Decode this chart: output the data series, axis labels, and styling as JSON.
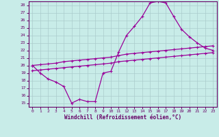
{
  "xlabel": "Windchill (Refroidissement éolien,°C)",
  "bg_color": "#c8ece8",
  "line_color": "#990099",
  "grid_color": "#aacccc",
  "xlim": [
    -0.5,
    23.5
  ],
  "ylim": [
    14.5,
    28.5
  ],
  "xticks": [
    0,
    1,
    2,
    3,
    4,
    5,
    6,
    7,
    8,
    9,
    10,
    11,
    12,
    13,
    14,
    15,
    16,
    17,
    18,
    19,
    20,
    21,
    22,
    23
  ],
  "yticks": [
    15,
    16,
    17,
    18,
    19,
    20,
    21,
    22,
    23,
    24,
    25,
    26,
    27,
    28
  ],
  "line1_x": [
    0,
    1,
    2,
    3,
    4,
    5,
    6,
    7,
    8,
    9,
    10,
    11,
    12,
    13,
    14,
    15,
    16,
    17,
    18,
    19,
    20,
    21,
    22,
    23
  ],
  "line1_y": [
    20.0,
    19.0,
    18.2,
    17.8,
    17.2,
    15.0,
    15.5,
    15.2,
    15.2,
    19.0,
    19.2,
    21.8,
    24.0,
    25.2,
    26.5,
    28.3,
    28.5,
    28.3,
    26.5,
    24.8,
    23.8,
    23.0,
    22.3,
    22.0
  ],
  "line2_x": [
    0,
    1,
    2,
    3,
    4,
    5,
    6,
    7,
    8,
    9,
    10,
    11,
    12,
    13,
    14,
    15,
    16,
    17,
    18,
    19,
    20,
    21,
    22,
    23
  ],
  "line2_y": [
    20.0,
    20.1,
    20.2,
    20.3,
    20.5,
    20.6,
    20.7,
    20.8,
    20.9,
    21.0,
    21.1,
    21.3,
    21.5,
    21.6,
    21.7,
    21.8,
    21.9,
    22.0,
    22.1,
    22.2,
    22.3,
    22.4,
    22.5,
    22.6
  ],
  "line3_x": [
    0,
    1,
    2,
    3,
    4,
    5,
    6,
    7,
    8,
    9,
    10,
    11,
    12,
    13,
    14,
    15,
    16,
    17,
    18,
    19,
    20,
    21,
    22,
    23
  ],
  "line3_y": [
    19.3,
    19.4,
    19.5,
    19.6,
    19.7,
    19.8,
    19.9,
    20.0,
    20.1,
    20.2,
    20.3,
    20.5,
    20.6,
    20.7,
    20.8,
    20.9,
    21.0,
    21.1,
    21.2,
    21.3,
    21.4,
    21.5,
    21.6,
    21.7
  ]
}
